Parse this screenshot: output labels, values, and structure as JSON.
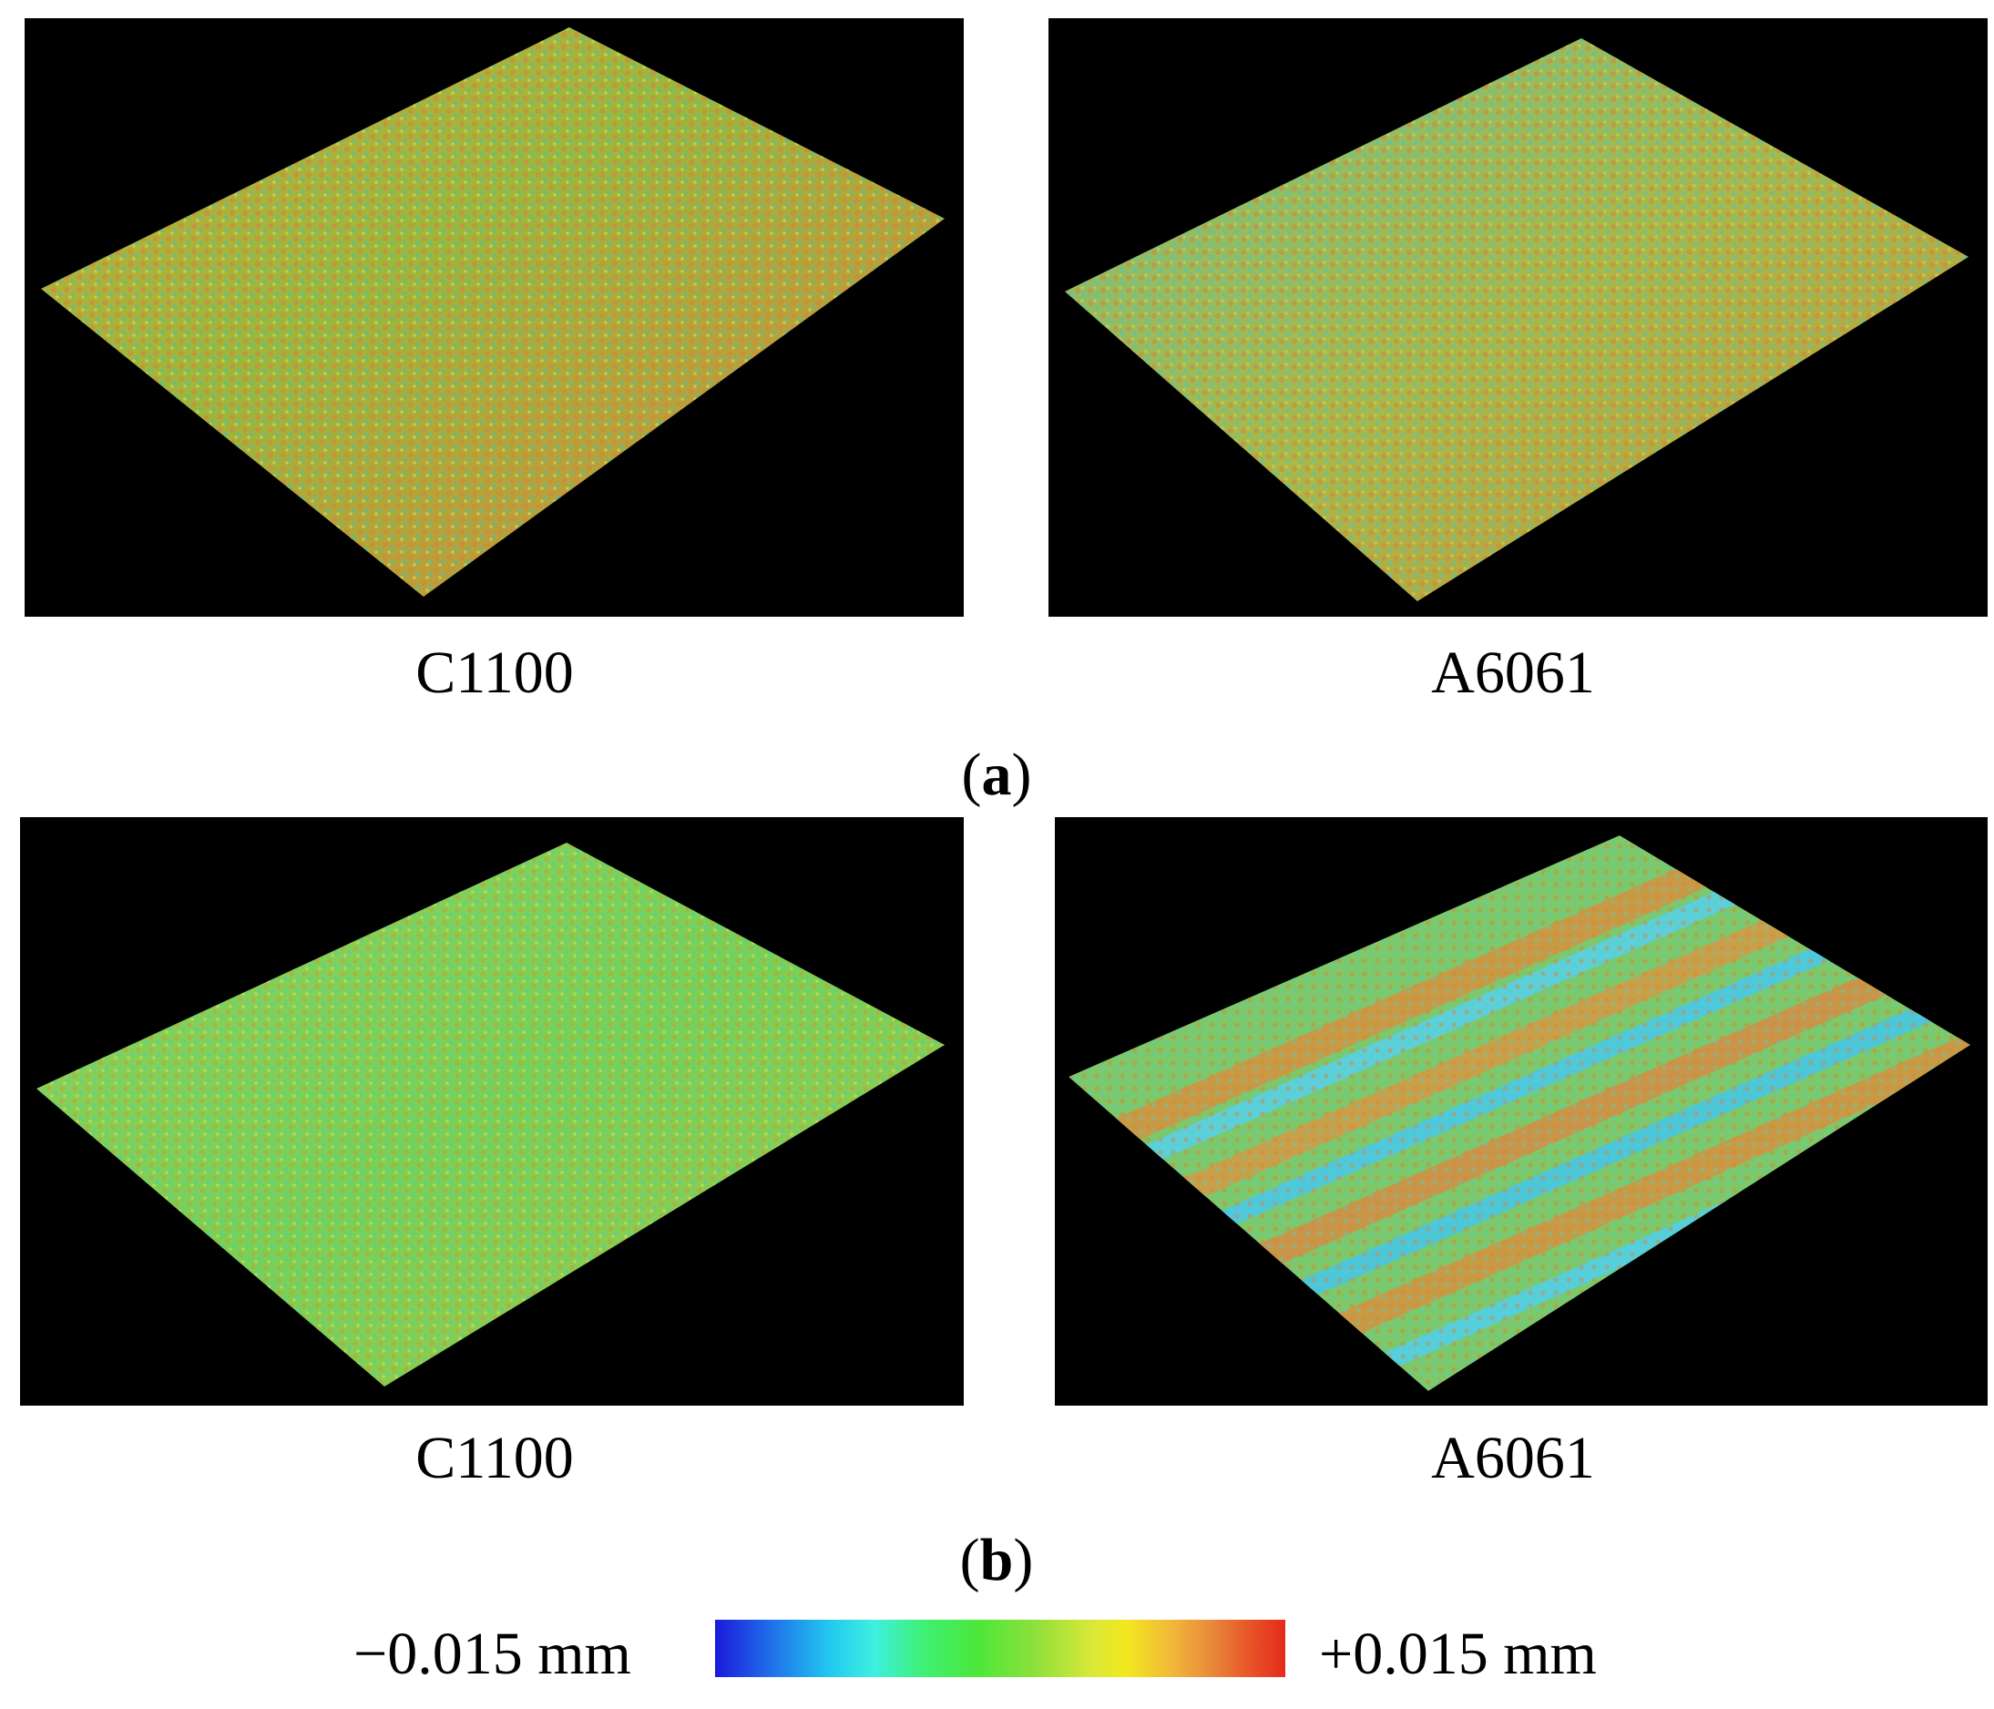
{
  "figure": {
    "panels": [
      {
        "group": "a",
        "material": "C1100",
        "pattern": "random-peaks"
      },
      {
        "group": "a",
        "material": "A6061",
        "pattern": "random-peaks"
      },
      {
        "group": "b",
        "material": "C1100",
        "pattern": "random-peaks"
      },
      {
        "group": "b",
        "material": "A6061",
        "pattern": "striped-grooves"
      }
    ],
    "subcaptions": {
      "a_open": "(",
      "a": "a",
      "a_close": ")",
      "b_open": "(",
      "b": "b",
      "b_close": ")"
    },
    "legend": {
      "min_label": "−0.015 mm",
      "max_label": "+0.015 mm",
      "colors": [
        "#1a1ad8",
        "#22c8f0",
        "#3ef07a",
        "#8ee03a",
        "#f2e81e",
        "#e88a3a",
        "#e42a1a"
      ]
    }
  }
}
